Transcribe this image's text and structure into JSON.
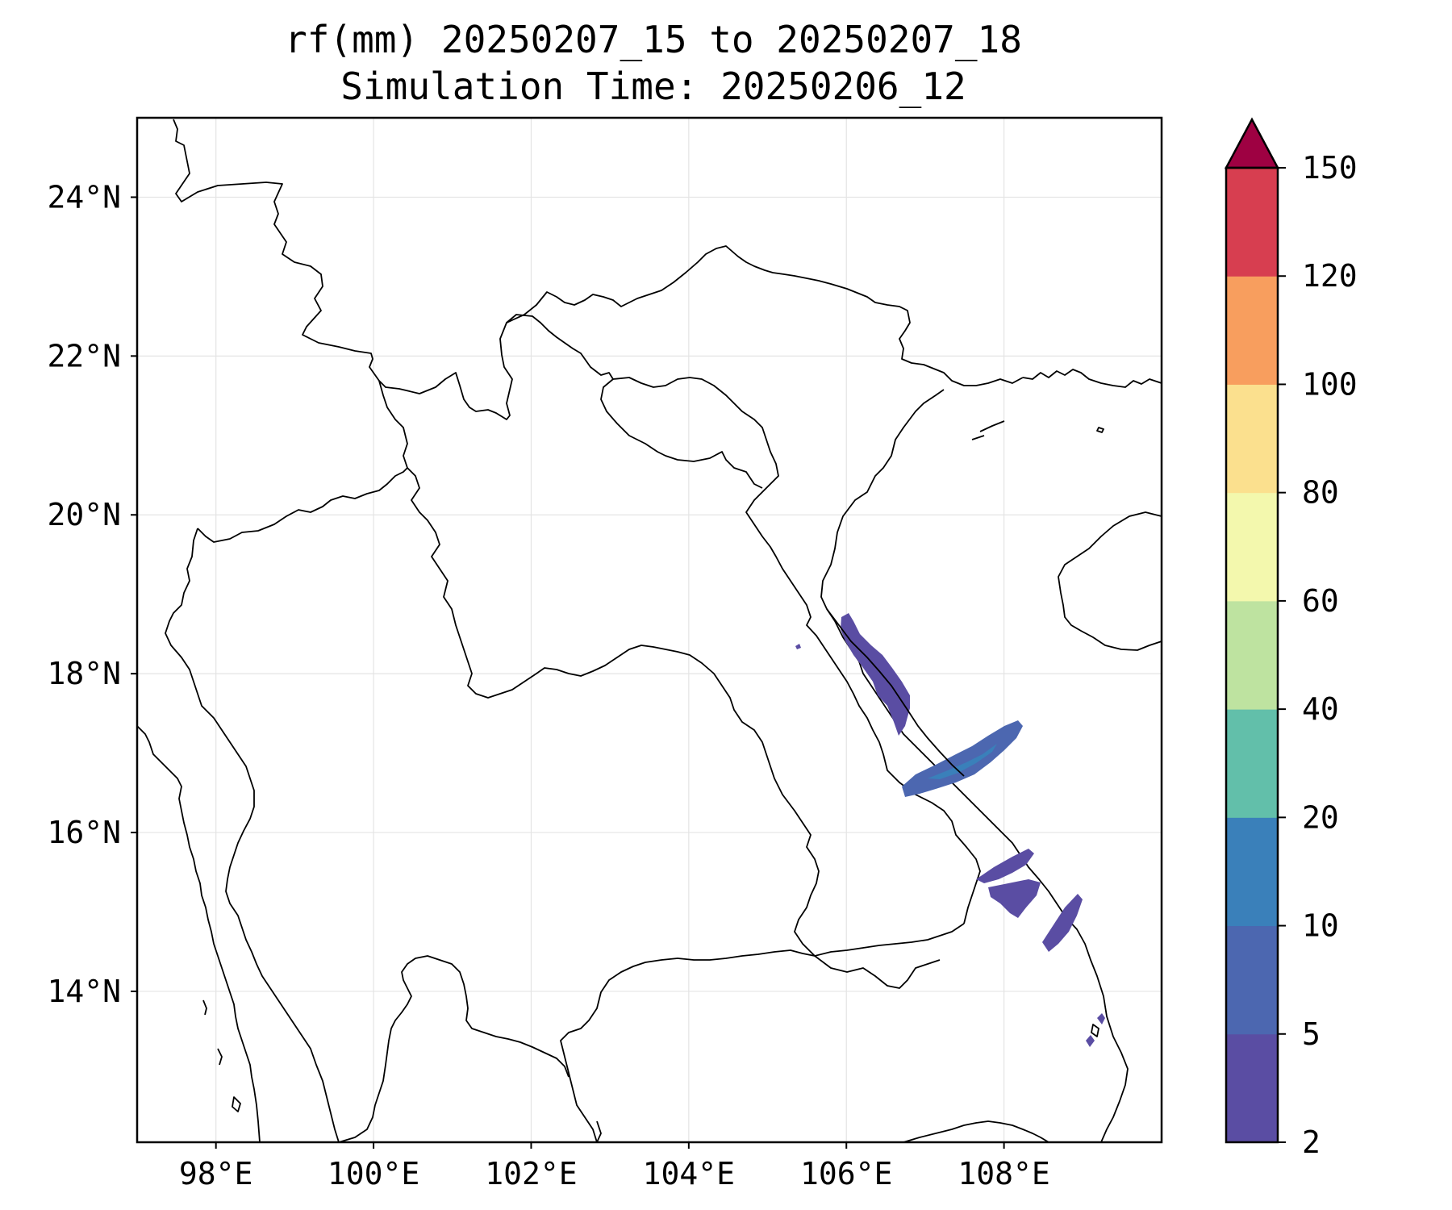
{
  "title": {
    "line1": "rf(mm) 20250207_15 to 20250207_18",
    "line2": "Simulation Time: 20250206_12"
  },
  "map": {
    "lon_range": [
      97.0,
      110.0
    ],
    "lat_range": [
      12.1,
      25.0
    ],
    "lon_ticks": [
      "98°E",
      "100°E",
      "102°E",
      "104°E",
      "106°E",
      "108°E"
    ],
    "lat_ticks": [
      "14°N",
      "16°N",
      "18°N",
      "20°N",
      "22°N",
      "24°N"
    ],
    "grid": true
  },
  "colorbar": {
    "levels": [
      "2",
      "5",
      "10",
      "20",
      "40",
      "60",
      "80",
      "100",
      "120",
      "150"
    ],
    "colors": [
      "#5a4da3",
      "#4c67b0",
      "#3a80ba",
      "#62bfaa",
      "#bee3a0",
      "#f3f8ad",
      "#fbe08e",
      "#f89e5e",
      "#d73e50",
      "#9e0142"
    ],
    "extend": "max"
  },
  "rain_areas": [
    {
      "name": "rain-area-north-coast",
      "level_index": 0
    },
    {
      "name": "rain-area-central-coast",
      "level_index": 1
    },
    {
      "name": "rain-area-inland-south",
      "level_index": 0
    },
    {
      "name": "rain-area-south-coast",
      "level_index": 0
    },
    {
      "name": "rain-area-far-south",
      "level_index": 0
    }
  ]
}
